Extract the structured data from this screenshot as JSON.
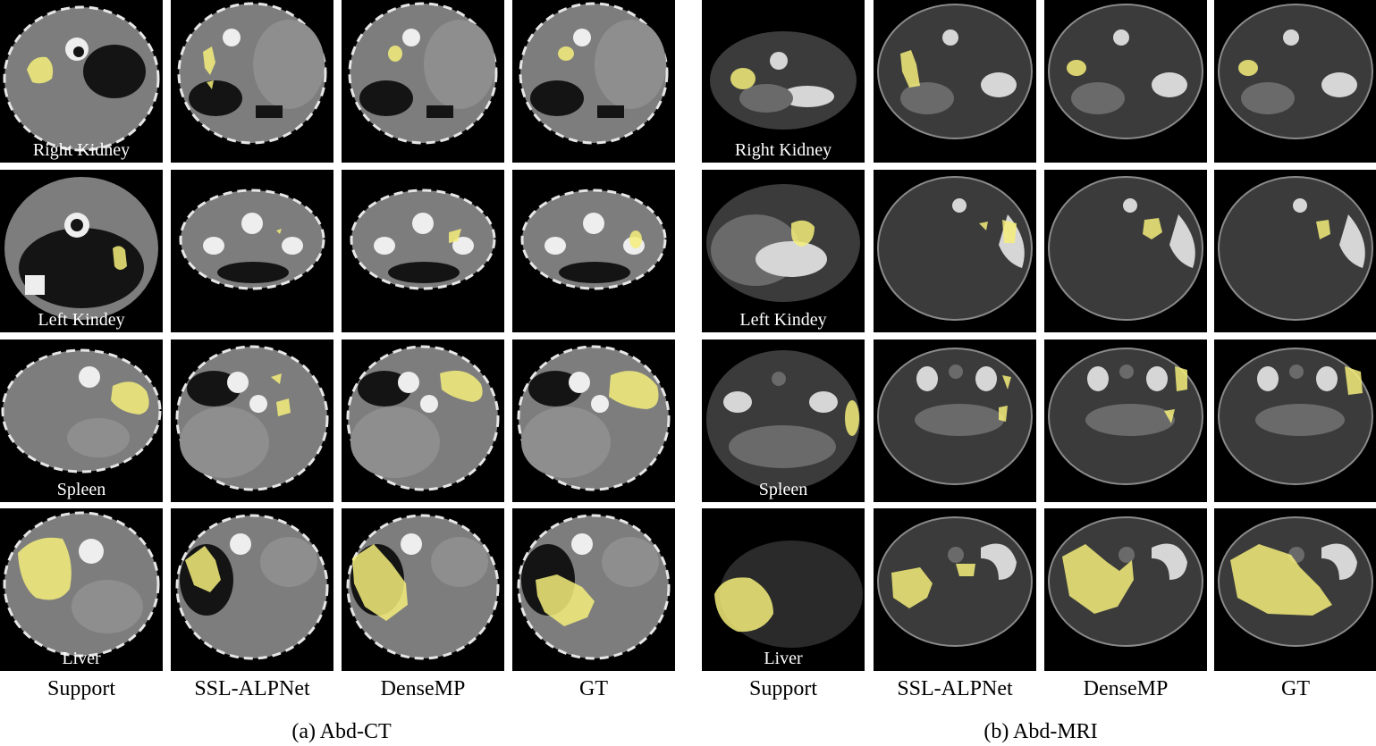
{
  "columns": {
    "ct": [
      "Support",
      "SSL-ALPNet",
      "DenseMP",
      "GT"
    ],
    "mri": [
      "Support",
      "SSL-ALPNet",
      "DenseMP",
      "GT"
    ]
  },
  "organs": [
    "Right Kidney",
    "Left Kindey",
    "Spleen",
    "Liver"
  ],
  "captions": {
    "ct": "(a) Abd-CT",
    "mri": "(b) Abd-MRI"
  },
  "colors": {
    "mask": "#f5ef7a",
    "background": "#000000"
  }
}
